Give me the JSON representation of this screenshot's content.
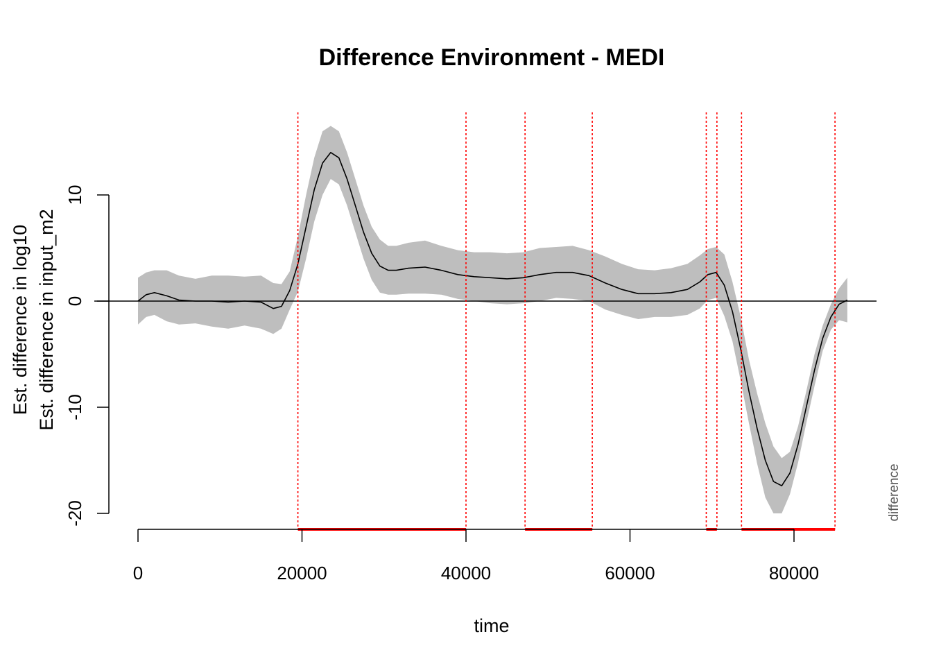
{
  "chart_data": {
    "type": "line",
    "title": "Difference Environment - MEDI",
    "xlabel": "time",
    "ylabel_lines": [
      "Est. difference in log10",
      "Est. difference in input_m2"
    ],
    "side_note": "difference",
    "xlim": [
      0,
      90000
    ],
    "ylim": [
      -20,
      10
    ],
    "x_ticks": [
      0,
      20000,
      40000,
      60000,
      80000
    ],
    "y_ticks": [
      -20,
      -10,
      0,
      10
    ],
    "reference_line": 0,
    "colors": {
      "line": "#000000",
      "band": "#bebebe",
      "significance": "#ff0000"
    },
    "series": [
      {
        "x": [
          0,
          1000,
          2000,
          3500,
          5000,
          7000,
          9000,
          11000,
          13000,
          15000,
          16500,
          17500,
          18500,
          19500,
          20500,
          21500,
          22500,
          23500,
          24500,
          25500,
          26500,
          27500,
          28500,
          29500,
          30500,
          31500,
          33000,
          35000,
          37000,
          39000,
          41000,
          43000,
          45000,
          47000,
          49000,
          51000,
          53000,
          55000,
          57000,
          59000,
          61000,
          63000,
          65000,
          67000,
          68500,
          69500,
          70500,
          71500,
          72500,
          73500,
          74500,
          75500,
          76500,
          77500,
          78500,
          79500,
          80500,
          81500,
          82500,
          83500,
          84500,
          85500,
          86500
        ],
        "y": [
          0,
          0.6,
          0.8,
          0.5,
          0.1,
          0,
          0,
          -0.1,
          0,
          -0.1,
          -0.7,
          -0.5,
          1,
          3.5,
          7,
          10.5,
          13,
          14,
          13.5,
          11.5,
          9,
          6.5,
          4.5,
          3.3,
          2.9,
          2.9,
          3.1,
          3.2,
          2.9,
          2.5,
          2.3,
          2.2,
          2.1,
          2.2,
          2.5,
          2.7,
          2.7,
          2.4,
          1.7,
          1.1,
          0.7,
          0.7,
          0.8,
          1.1,
          1.8,
          2.5,
          2.7,
          1.5,
          -1,
          -4.5,
          -8.5,
          -12,
          -15,
          -17,
          -17.4,
          -16.2,
          -13.5,
          -10,
          -6.5,
          -3.5,
          -1.5,
          -0.3,
          0.1
        ],
        "upper": [
          2.2,
          2.7,
          2.9,
          2.9,
          2.4,
          2.1,
          2.4,
          2.4,
          2.3,
          2.4,
          1.7,
          1.6,
          2.8,
          6.1,
          10,
          13.5,
          16,
          16.5,
          16,
          14,
          11.5,
          9,
          7,
          5.8,
          5.2,
          5.2,
          5.5,
          5.7,
          5.2,
          4.8,
          4.6,
          4.6,
          4.5,
          4.6,
          5,
          5.1,
          5.2,
          4.8,
          4.2,
          3.5,
          3,
          2.9,
          3.1,
          3.5,
          4.3,
          4.9,
          5.1,
          4.4,
          1.8,
          -1.5,
          -5.5,
          -8.7,
          -11.5,
          -13.7,
          -14.8,
          -14.2,
          -11.8,
          -8.5,
          -5,
          -2.3,
          -0.3,
          1.2,
          2.2
        ],
        "lower": [
          -2.2,
          -1.5,
          -1.3,
          -1.9,
          -2.2,
          -2.1,
          -2.4,
          -2.6,
          -2.3,
          -2.6,
          -3.1,
          -2.6,
          -0.8,
          0.9,
          4,
          7.5,
          10,
          11.5,
          11,
          9,
          6.5,
          4,
          2,
          0.8,
          0.6,
          0.6,
          0.7,
          0.7,
          0.6,
          0.2,
          0,
          -0.2,
          -0.3,
          -0.2,
          0,
          0.3,
          0.2,
          0,
          -0.8,
          -1.3,
          -1.7,
          -1.5,
          -1.5,
          -1.3,
          -0.7,
          0.1,
          0.3,
          -1.4,
          -3.8,
          -7.5,
          -11.5,
          -15.3,
          -18.5,
          -20,
          -20,
          -18.2,
          -15.2,
          -11.5,
          -8,
          -4.7,
          -2.7,
          -1.8,
          -2
        ]
      }
    ],
    "significant_intervals": [
      [
        19500,
        40000
      ],
      [
        47200,
        55400
      ],
      [
        69300,
        70600
      ],
      [
        73600,
        85000
      ]
    ]
  }
}
